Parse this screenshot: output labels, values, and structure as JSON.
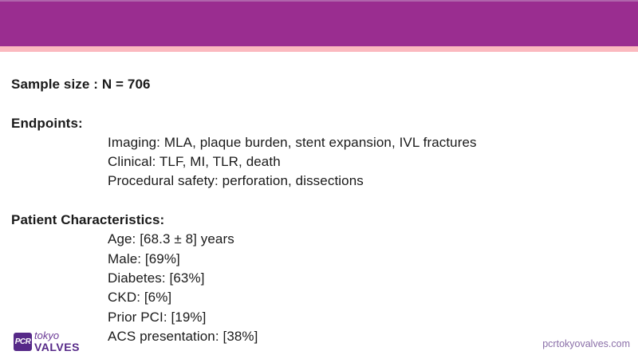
{
  "slide": {
    "sample_size": "Sample size : N = 706",
    "endpoints": {
      "heading": "Endpoints:",
      "items": [
        "Imaging: MLA, plaque burden, stent expansion, IVL fractures",
        "Clinical: TLF, MI, TLR, death",
        "Procedural safety: perforation, dissections"
      ]
    },
    "patient_characteristics": {
      "heading": "Patient Characteristics:",
      "items": [
        "Age: [68.3 ± 8] years",
        "Male: [69%]",
        "Diabetes: [63%]",
        "CKD: [6%]",
        "Prior PCI: [19%]",
        "ACS presentation: [38%]"
      ]
    },
    "footer": {
      "logo": {
        "badge": "PCR",
        "line1": "tokyo",
        "line2": "VALVES"
      },
      "website": "pcrtokyovalves.com"
    }
  },
  "colors": {
    "header_band": "#9A2D90",
    "header_top_edge": "#B065AC",
    "pink_strip": "#FBB9BF",
    "logo_purple": "#562988",
    "logo_tokyo": "#6B3A96",
    "url_text": "#8A6FA8",
    "body_text": "#1A1A1A"
  }
}
